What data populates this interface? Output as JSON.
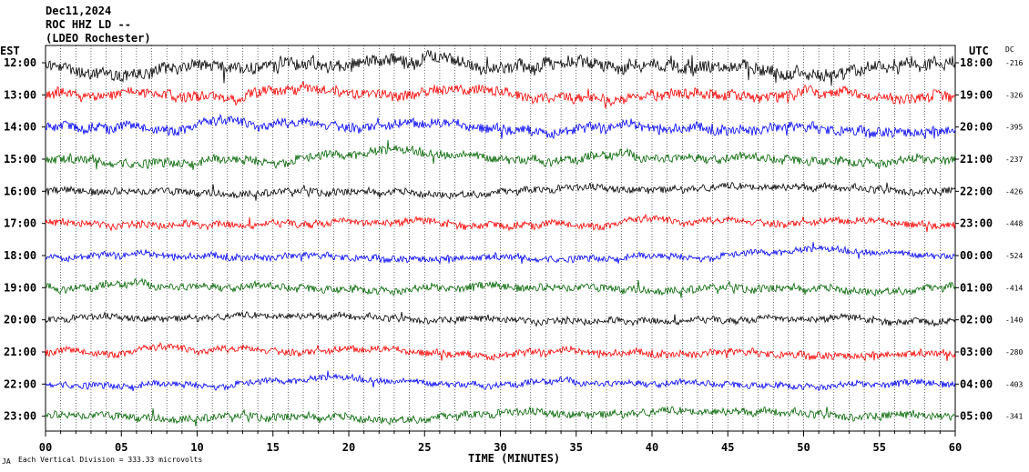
{
  "header": {
    "line1": "Dec11,2024",
    "line2": "ROC HHZ LD --",
    "line3": "(LDEO Rochester)"
  },
  "axis": {
    "left_label": "EST",
    "right_label": "UTC",
    "dc_label": "DC",
    "xlabel": "TIME (MINUTES)",
    "footnote": "Each Vertical Division =  333.33 microvolts",
    "corner_mark": "JA"
  },
  "chart_data": {
    "type": "line",
    "description_of_values": "helicorder traces, one per hour row",
    "xlim": [
      0,
      60
    ],
    "x_ticks": [
      "00",
      "05",
      "10",
      "15",
      "20",
      "25",
      "30",
      "35",
      "40",
      "45",
      "50",
      "55",
      "60"
    ],
    "rows": [
      {
        "est": "12:00",
        "utc": "18:00",
        "dc": "-216",
        "color": "#000000",
        "amp": 1.0
      },
      {
        "est": "13:00",
        "utc": "19:00",
        "dc": "-326",
        "color": "#ff0000",
        "amp": 0.8
      },
      {
        "est": "14:00",
        "utc": "20:00",
        "dc": "-395",
        "color": "#0000ff",
        "amp": 0.75
      },
      {
        "est": "15:00",
        "utc": "21:00",
        "dc": "-237",
        "color": "#006400",
        "amp": 0.7
      },
      {
        "est": "16:00",
        "utc": "22:00",
        "dc": "-426",
        "color": "#000000",
        "amp": 0.55
      },
      {
        "est": "17:00",
        "utc": "23:00",
        "dc": "-448",
        "color": "#ff0000",
        "amp": 0.55
      },
      {
        "est": "18:00",
        "utc": "00:00",
        "dc": "-524",
        "color": "#0000ff",
        "amp": 0.5
      },
      {
        "est": "19:00",
        "utc": "01:00",
        "dc": "-414",
        "color": "#006400",
        "amp": 0.6
      },
      {
        "est": "20:00",
        "utc": "02:00",
        "dc": "-140",
        "color": "#000000",
        "amp": 0.5
      },
      {
        "est": "21:00",
        "utc": "03:00",
        "dc": "-280",
        "color": "#ff0000",
        "amp": 0.55
      },
      {
        "est": "22:00",
        "utc": "04:00",
        "dc": "-403",
        "color": "#0000ff",
        "amp": 0.5
      },
      {
        "est": "23:00",
        "utc": "05:00",
        "dc": "-341",
        "color": "#006400",
        "amp": 0.6
      }
    ]
  }
}
